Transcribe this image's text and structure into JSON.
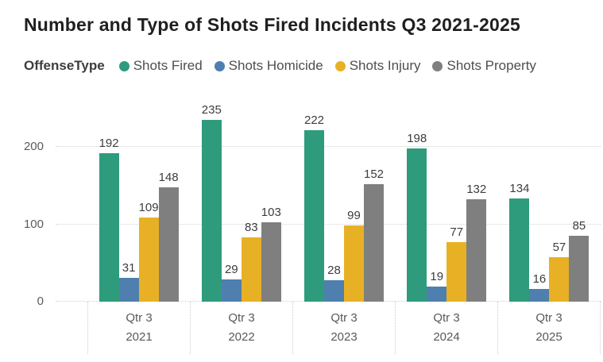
{
  "chart_data": {
    "type": "bar",
    "title": "Number and Type of Shots Fired Incidents Q3 2021-2025",
    "legend_title": "OffenseType",
    "legend_position": "top",
    "data_labels": true,
    "grid": "dotted horizontal",
    "categories": [
      "Qtr 3 2021",
      "Qtr 3 2022",
      "Qtr 3 2023",
      "Qtr 3 2024",
      "Qtr 3 2025"
    ],
    "series": [
      {
        "name": "Shots Fired",
        "color": "#2E9C7C",
        "values": [
          192,
          235,
          222,
          198,
          134
        ]
      },
      {
        "name": "Shots Homicide",
        "color": "#4E7FAF",
        "values": [
          31,
          29,
          28,
          19,
          16
        ]
      },
      {
        "name": "Shots Injury",
        "color": "#E8B125",
        "values": [
          109,
          83,
          99,
          77,
          57
        ]
      },
      {
        "name": "Shots Property",
        "color": "#7F7F7F",
        "values": [
          148,
          103,
          152,
          132,
          85
        ]
      }
    ],
    "xlabel": "",
    "ylabel": "",
    "ylim": [
      0,
      267
    ],
    "yticks": [
      0,
      100,
      200
    ]
  },
  "colors": {
    "background": "#ffffff",
    "title_text": "#1f1f1f",
    "legend_text": "#4e4e4e",
    "axis_text": "#5a5a5a",
    "data_label_text": "#3d3d3d",
    "gridline": "#d2d2d2"
  }
}
